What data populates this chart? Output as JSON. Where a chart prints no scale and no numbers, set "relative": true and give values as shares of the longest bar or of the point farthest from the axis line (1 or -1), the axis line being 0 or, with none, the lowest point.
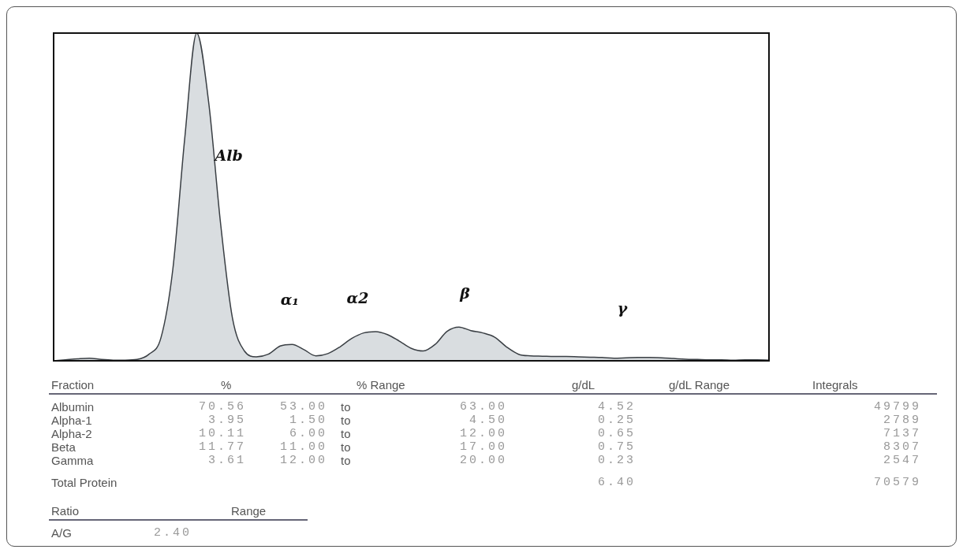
{
  "chart_data": [
    {
      "type": "area",
      "relative": true,
      "categories": [
        null,
        null,
        null,
        null,
        null,
        null,
        null,
        null,
        null,
        null,
        null,
        null,
        null,
        null,
        null,
        null,
        null,
        null,
        null,
        null,
        null,
        null,
        null,
        null,
        null,
        null,
        null,
        null,
        null,
        null,
        null,
        null,
        null,
        null,
        null,
        null,
        null,
        null,
        null,
        null,
        null,
        null,
        null,
        null,
        null,
        null,
        null,
        null,
        null,
        null,
        null,
        null,
        null,
        null,
        null,
        null,
        null,
        null,
        null,
        null,
        null
      ],
      "series": [
        {
          "color": "#d9dde0",
          "values": [
            0,
            0.003,
            0.006,
            0.008,
            0.004,
            0.002,
            0.002,
            0.004,
            0.02,
            0.07,
            0.28,
            0.68,
            1,
            0.79,
            0.42,
            0.13,
            0.03,
            0.012,
            0.02,
            0.045,
            0.05,
            0.034,
            0.015,
            0.022,
            0.042,
            0.068,
            0.085,
            0.089,
            0.08,
            0.06,
            0.038,
            0.03,
            0.05,
            0.09,
            0.103,
            0.092,
            0.085,
            0.072,
            0.042,
            0.02,
            0.015,
            0.014,
            0.013,
            0.013,
            0.012,
            0.011,
            0.01,
            0.008,
            0.009,
            0.01,
            0.01,
            0.009,
            0.007,
            0.005,
            0.004,
            0.003,
            0.003,
            0.002,
            0.003,
            0.003,
            0.002
          ]
        }
      ],
      "annotations": [
        "Alb",
        "α₁",
        "α2",
        "β",
        "γ"
      ]
    },
    {
      "type": "other",
      "annotations": [
        "Fraction\t%\t% Range\t\t\tg/dL\tg/dL Range\tIntegrals",
        "Albumin\t70.56\t53.00\tto\t63.00\t4.52\t\t49799",
        "Alpha-1\t3.95\t1.50\tto\t4.50\t0.25\t\t2789",
        "Alpha-2\t10.11\t6.00\tto\t12.00\t0.65\t\t7137",
        "Beta\t11.77\t11.00\tto\t17.00\t0.75\t\t8307",
        "Gamma\t3.61\t12.00\tto\t20.00\t0.23\t\t2547",
        "Total Protein\t\t\t\t\t6.40\t\t70579",
        "Ratio\tRange",
        "A/G\t2.40"
      ]
    }
  ]
}
